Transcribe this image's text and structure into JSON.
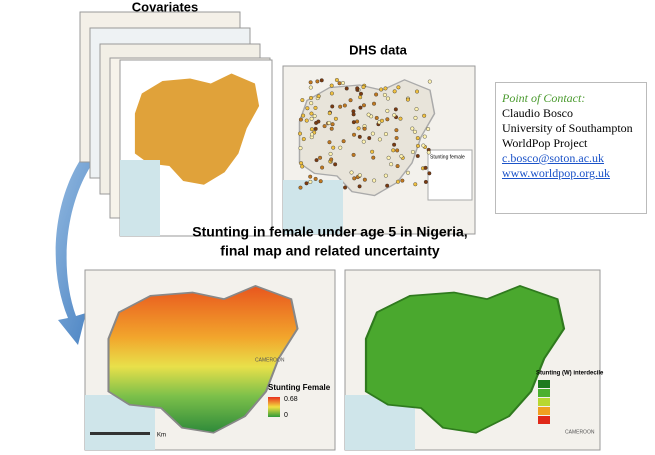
{
  "covariates": {
    "label": "Covariates"
  },
  "dhs": {
    "label": "DHS data",
    "legend_title": "Stunting female"
  },
  "contact": {
    "heading": "Point of Contact:",
    "name": "Claudio Bosco",
    "institution": "University of Southampton",
    "project": "WorldPop Project",
    "email": "c.bosco@soton.ac.uk",
    "website": "www.worldpop.org.uk"
  },
  "title": {
    "lines": [
      "Stunting in female under age 5 in Nigeria,",
      "final map and related uncertainty"
    ]
  },
  "final_map": {
    "legend_title": "Stunting Female",
    "high": "0.68",
    "low": "0",
    "neighbor": "CAMEROON"
  },
  "uncertainty_map": {
    "legend_title": "Stunting (W) interdecile",
    "neighbor": "CAMEROON"
  },
  "scale_unit": "Km"
}
